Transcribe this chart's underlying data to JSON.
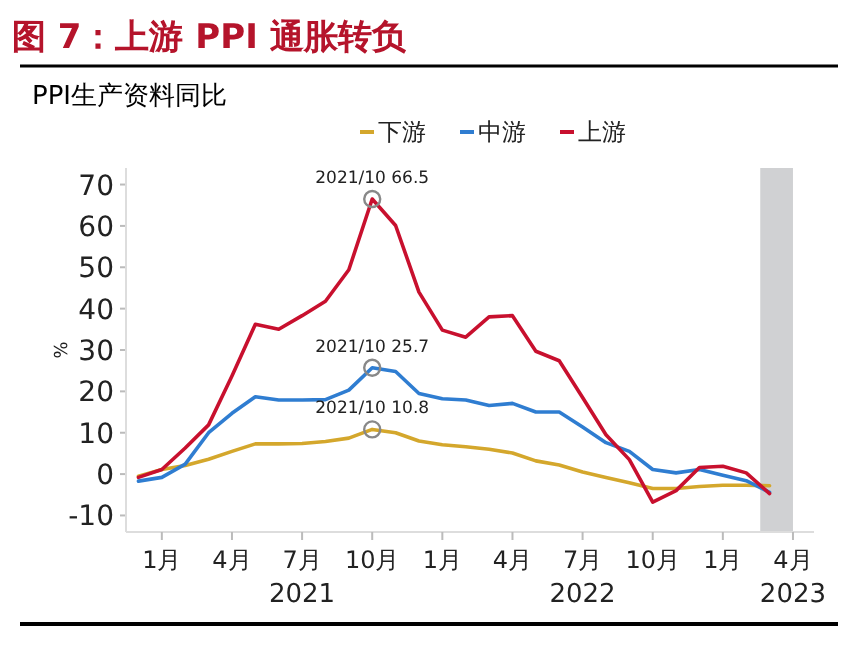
{
  "chart_data": {
    "type": "line",
    "title": "图 7：上游 PPI 通胀转负",
    "subtitle": "PPI生产资料同比",
    "ylabel": "%",
    "x": [
      "2020-12",
      "2021-01",
      "2021-02",
      "2021-03",
      "2021-04",
      "2021-05",
      "2021-06",
      "2021-07",
      "2021-08",
      "2021-09",
      "2021-10",
      "2021-11",
      "2021-12",
      "2022-01",
      "2022-02",
      "2022-03",
      "2022-04",
      "2022-05",
      "2022-06",
      "2022-07",
      "2022-08",
      "2022-09",
      "2022-10",
      "2022-11",
      "2022-12",
      "2023-01",
      "2023-02",
      "2023-03"
    ],
    "series": [
      {
        "name": "下游",
        "color": "#d4a72c",
        "values": [
          -0.5,
          1.1,
          2.1,
          3.6,
          5.5,
          7.3,
          7.3,
          7.4,
          7.9,
          8.7,
          10.8,
          10.0,
          8.0,
          7.1,
          6.6,
          6.0,
          5.1,
          3.2,
          2.2,
          0.5,
          -0.8,
          -2.1,
          -3.5,
          -3.5,
          -3.0,
          -2.7,
          -2.7,
          -2.8
        ]
      },
      {
        "name": "中游",
        "color": "#2f7dd1",
        "values": [
          -1.7,
          -0.8,
          2.4,
          10.0,
          14.7,
          18.7,
          17.9,
          17.9,
          18.0,
          20.3,
          25.7,
          24.8,
          19.5,
          18.2,
          17.9,
          16.6,
          17.1,
          15.0,
          15.0,
          11.4,
          7.6,
          5.5,
          1.1,
          0.3,
          1.1,
          -0.3,
          -1.6,
          -4.4
        ]
      },
      {
        "name": "上游",
        "color": "#c8102e",
        "values": [
          -0.8,
          1.1,
          6.3,
          11.9,
          23.7,
          36.2,
          35.0,
          38.3,
          41.8,
          49.4,
          66.5,
          60.1,
          44.0,
          34.8,
          33.1,
          38.0,
          38.3,
          29.7,
          27.4,
          18.5,
          9.5,
          3.5,
          -6.8,
          -4.0,
          1.6,
          1.9,
          0.3,
          -4.7
        ]
      }
    ],
    "xlim": [
      "2020-11-15",
      "2023-04-28"
    ],
    "xticks": [
      {
        "value": "2021-01",
        "label": "1月"
      },
      {
        "value": "2021-04",
        "label": "4月"
      },
      {
        "value": "2021-07",
        "label": "7月\n2021"
      },
      {
        "value": "2021-10",
        "label": "10月"
      },
      {
        "value": "2022-01",
        "label": "1月"
      },
      {
        "value": "2022-04",
        "label": "4月"
      },
      {
        "value": "2022-07",
        "label": "7月\n2022"
      },
      {
        "value": "2022-10",
        "label": "10月"
      },
      {
        "value": "2023-01",
        "label": "1月"
      },
      {
        "value": "2023-04",
        "label": "4月\n2023"
      }
    ],
    "ylim": [
      -14,
      74
    ],
    "yticks": [
      -10,
      0,
      10,
      20,
      30,
      40,
      50,
      60,
      70
    ],
    "bands": [
      {
        "axis": "x",
        "from": "2023-02-19",
        "to": "2023-04-01",
        "color": "#d0d1d3"
      }
    ],
    "annotations": [
      {
        "text": "2021/10  66.5",
        "x": "2021-10",
        "y": 66.5
      },
      {
        "text": "2021/10  25.7",
        "x": "2021-10",
        "y": 25.7
      },
      {
        "text": "2021/10  10.8",
        "x": "2021-10",
        "y": 10.8
      }
    ],
    "legend": "top",
    "grid": false,
    "marker": "none",
    "line_style": "solid"
  }
}
